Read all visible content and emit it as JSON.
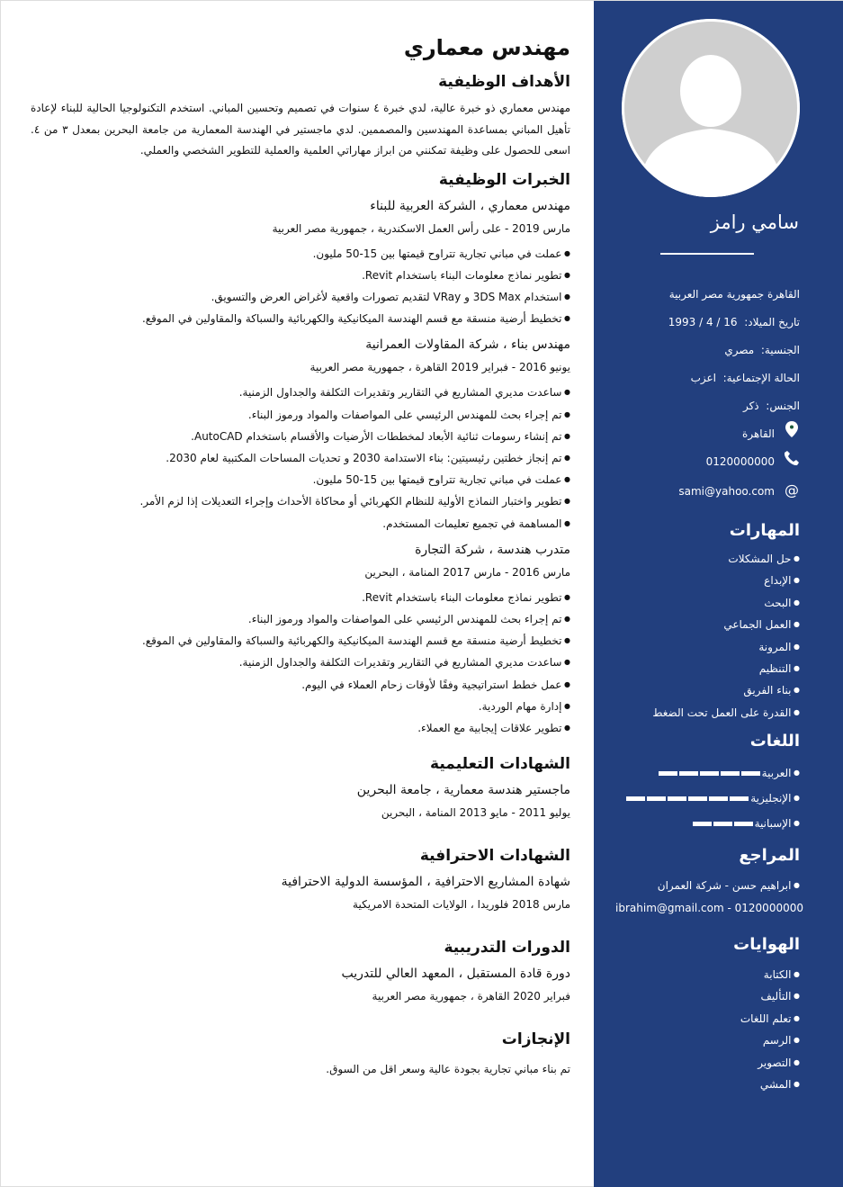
{
  "header": {
    "title": "مهندس معماري"
  },
  "objectives": {
    "heading": "الأهداف الوظيفية",
    "text": "مهندس معماري ذو خبرة عالية، لدي خبرة ٤ سنوات في تصميم وتحسين المباني. استخدم التكنولوجيا الحالية للبناء لإعادة تأهيل المباني بمساعدة المهندسين والمصممين. لدي ماجستير في الهندسة المعمارية من جامعة البحرين بمعدل ٣ من ٤. اسعى للحصول على وظيفة تمكنني من ابراز مهاراتي العلمية والعملية للتطوير الشخصي والعملي."
  },
  "experience": {
    "heading": "الخبرات الوظيفية",
    "jobs": [
      {
        "title": "مهندس معماري ، الشركة العربية للبناء",
        "date": "مارس  2019  -  على رأس العمل  الاسكندرية  ،  جمهورية مصر العربية",
        "bullets": [
          "عملت في مباني تجارية تتراوح قيمتها بين 15-50 مليون.",
          "تطوير نماذج معلومات البناء باستخدام Revit.",
          "استخدام 3DS Max و VRay لتقديم تصورات واقعية لأغراض العرض والتسويق.",
          "تخطيط أرضية منسقة مع قسم الهندسة الميكانيكية والكهربائية والسباكة والمقاولين في الموقع."
        ]
      },
      {
        "title": "مهندس بناء ، شركة المقاولات العمرانية",
        "date": "يونيو  2016  -  فبراير  2019  القاهرة  ،  جمهورية مصر العربية",
        "bullets": [
          "ساعدت مديري المشاريع في التقارير وتقديرات التكلفة والجداول الزمنية.",
          "تم إجراء بحث للمهندس الرئيسي على المواصفات والمواد ورموز البناء.",
          "تم إنشاء رسومات ثنائية الأبعاد لمخططات الأرضيات والأقسام باستخدام AutoCAD.",
          "تم إنجاز خطتين رئيسيتين: بناء الاستدامة 2030 و تحديات المساحات المكتبية لعام 2030.",
          "عملت في مباني تجارية تتراوح قيمتها بين 15-50 مليون.",
          "تطوير واختبار النماذج الأولية للنظام الكهربائي أو محاكاة الأحداث وإجراء التعديلات إذا لزم الأمر.",
          "المساهمة في تجميع تعليمات المستخدم."
        ]
      },
      {
        "title": "متدرب هندسة ، شركة التجارة",
        "date": "مارس  2016  -  مارس  2017  المنامة  ،  البحرين",
        "bullets": [
          "تطوير نماذج معلومات البناء باستخدام Revit.",
          "تم إجراء بحث للمهندس الرئيسي على المواصفات والمواد ورموز البناء.",
          "تخطيط أرضية منسقة مع قسم الهندسة الميكانيكية والكهربائية والسباكة والمقاولين في الموقع.",
          "ساعدت مديري المشاريع في التقارير وتقديرات التكلفة والجداول الزمنية.",
          "عمل خطط استراتيجية وفقًا لأوقات زحام العملاء في اليوم.",
          "إدارة مهام الوردية.",
          "تطوير علاقات إيجابية مع العملاء."
        ]
      }
    ]
  },
  "education": {
    "heading": "الشهادات التعليمية",
    "title": "ماجستير هندسة معمارية ، جامعة البحرين",
    "date": "يوليو  2011  -  مايو  2013  المنامة  ،  البحرين"
  },
  "certificates": {
    "heading": "الشهادات الاحترافية",
    "title": "شهادة المشاريع الاحترافية ، المؤسسة الدولية الاحترافية",
    "date": "مارس  2018  فلوريدا  ،  الولايات المتحدة الامريكية"
  },
  "courses": {
    "heading": "الدورات التدريبية",
    "title": "دورة قادة المستقبل ، المعهد العالي للتدريب",
    "date": "فبراير  2020  القاهرة  ،  جمهورية مصر العربية"
  },
  "achievements": {
    "heading": "الإنجازات",
    "text": "تم بناء مباني تجارية بجودة عالية وسعر اقل من السوق."
  },
  "sidebar": {
    "name": "سامي رامز",
    "accent": "#223f7e",
    "address": "القاهرة جمهورية مصر العربية",
    "birth_label": "تاريخ الميلاد:",
    "birth": "16 / 4 / 1993",
    "nationality_label": "الجنسية:",
    "nationality": "مصري",
    "marital_label": "الحالة الإجتماعية:",
    "marital": "اعزب",
    "gender_label": "الجنس:",
    "gender": "ذكر",
    "location": "القاهرة",
    "location_icon": "map-pin-icon",
    "phone": "0120000000",
    "phone_icon": "phone-icon",
    "email": "sami@yahoo.com",
    "email_icon": "at-icon",
    "skills_heading": "المهارات",
    "skills": [
      "حل المشكلات",
      "الإبداع",
      "البحث",
      "العمل الجماعي",
      "المرونة",
      "التنظيم",
      "بناء الفريق",
      "القدرة على العمل تحت الضغط"
    ],
    "languages_heading": "اللغات",
    "languages": [
      {
        "name": "العربية",
        "level": 5
      },
      {
        "name": "الإنجليزية",
        "level": 6
      },
      {
        "name": "الإسبانية",
        "level": 3
      }
    ],
    "references_heading": "المراجع",
    "reference_name": "ابراهيم حسن - شركة العمران",
    "reference_contact": "ibrahim@gmail.com - 0120000000",
    "hobbies_heading": "الهوايات",
    "hobbies": [
      "الكتابة",
      "التأليف",
      "تعلم اللغات",
      "الرسم",
      "التصوير",
      "المشي"
    ]
  }
}
